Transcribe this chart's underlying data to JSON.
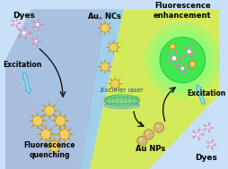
{
  "bg": {
    "pink": "#f0a0c0",
    "blue": "#90c8e8",
    "yellow": "#d8ec40",
    "light_blue": "#c8e0f8"
  },
  "labels": {
    "dyes_top_left": "Dyes",
    "dyes_bottom_right": "Dyes",
    "aun_ncs": "Au NCs",
    "excimer": "Excimer laser",
    "au_nps": "Au NPs",
    "fluor_enhance": "Fluorescence\nenhancement",
    "fluor_quench": "Fluorescence\nquenching",
    "excitation_left": "Excitation",
    "excitation_right": "Excitation"
  },
  "colors": {
    "cluster_center": "#f0d060",
    "cluster_spike": "#c09020",
    "np_color": "#d4b870",
    "np_edge": "#a07830",
    "dye_petal": "#d090b0",
    "dye_center": "#ffffff",
    "green_glow1": "#80ff80",
    "green_glow2": "#40e850",
    "excimer_green": "#70d880",
    "arrow_color": "#151515",
    "excitation_fill": "#88d8f8",
    "excitation_edge": "#40a0c8"
  },
  "figsize": [
    2.54,
    1.89
  ],
  "dpi": 100
}
